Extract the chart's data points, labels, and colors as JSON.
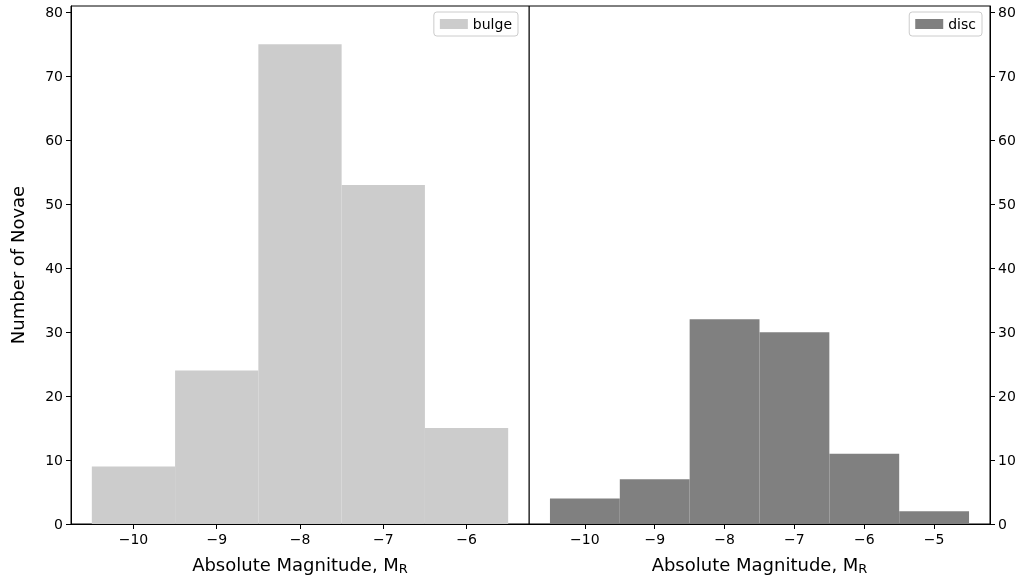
{
  "chart_data": [
    {
      "type": "histogram",
      "xlabel": "Absolute Magnitude, M$_{R}$",
      "ylabel": "Number of Novae",
      "bins": [
        -10.5,
        -9.5,
        -8.5,
        -7.5,
        -6.5,
        -5.5
      ],
      "series": [
        {
          "name": "bulge",
          "color": "#cccccc",
          "values": [
            9,
            24,
            75,
            53,
            15
          ]
        }
      ],
      "xlim": [
        -10.75,
        -5.25
      ],
      "xticks": [
        {
          "value": -10,
          "label": "−10"
        },
        {
          "value": -9,
          "label": "−9"
        },
        {
          "value": -8,
          "label": "−8"
        },
        {
          "value": -7,
          "label": "−7"
        },
        {
          "value": -6,
          "label": "−6"
        }
      ],
      "ylim": [
        0,
        81
      ],
      "yticks": [
        0,
        10,
        20,
        30,
        40,
        50,
        60,
        70,
        80
      ],
      "legend": "top right"
    },
    {
      "type": "histogram",
      "xlabel": "Absolute Magnitude, M$_{R}$",
      "bins": [
        -10.5,
        -9.5,
        -8.5,
        -7.5,
        -6.5,
        -5.5,
        -4.5
      ],
      "series": [
        {
          "name": "disc",
          "color": "#808080",
          "axis": "y2",
          "values": [
            4,
            7,
            32,
            30,
            11,
            2
          ]
        }
      ],
      "xlim": [
        -10.8,
        -4.2
      ],
      "xticks": [
        {
          "value": -10,
          "label": "−10"
        },
        {
          "value": -9,
          "label": "−9"
        },
        {
          "value": -8,
          "label": "−8"
        },
        {
          "value": -7,
          "label": "−7"
        },
        {
          "value": -6,
          "label": "−6"
        },
        {
          "value": -5,
          "label": "−5"
        }
      ],
      "y2lim": [
        0,
        81
      ],
      "y2ticks": [
        0,
        10,
        20,
        30,
        40,
        50,
        60,
        70,
        80
      ],
      "legend": "top right"
    }
  ]
}
